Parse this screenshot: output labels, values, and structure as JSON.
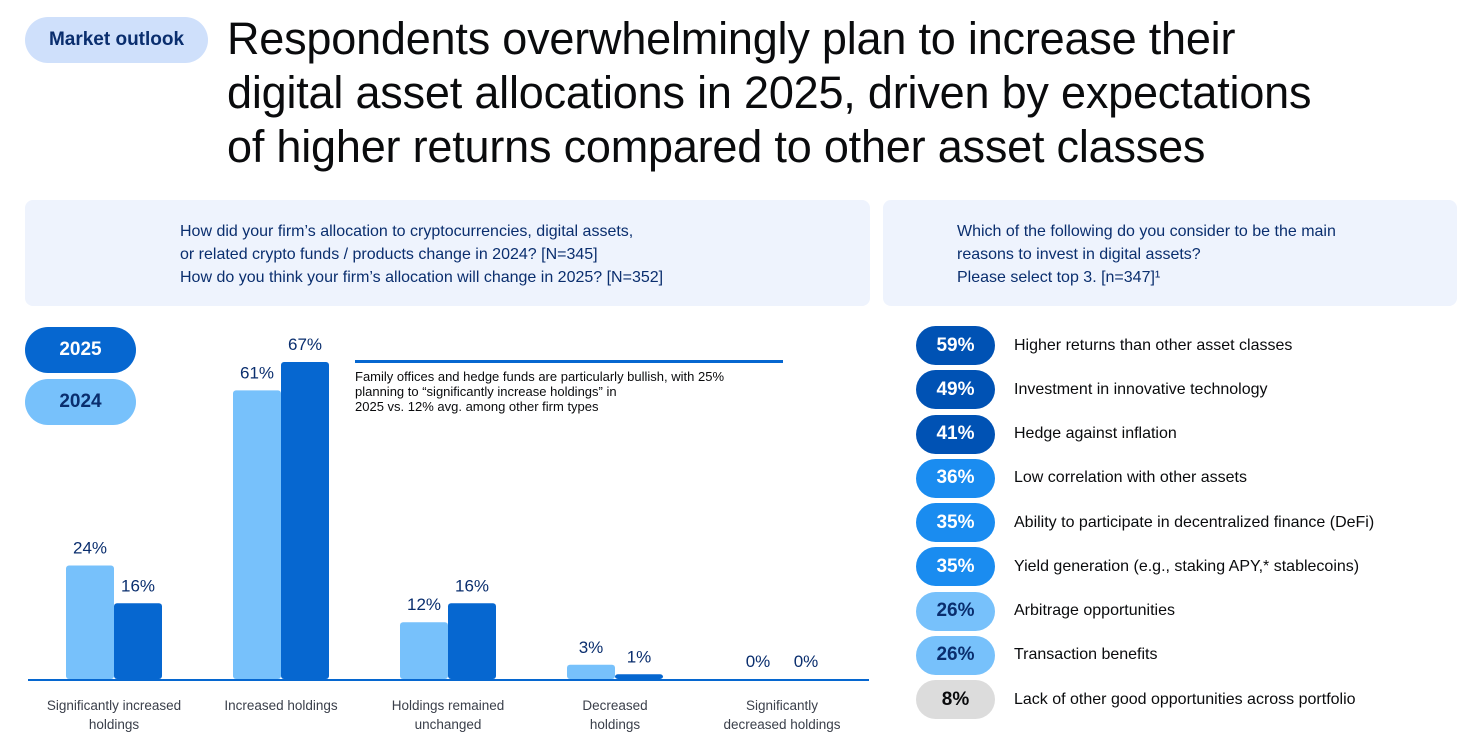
{
  "header": {
    "tag": "Market outlook",
    "headline_lines": [
      "Respondents overwhelmingly plan to increase their",
      "digital asset allocations in 2025, driven by expectations",
      "of higher returns compared to other asset classes"
    ]
  },
  "left_panel": {
    "question_lines": [
      "How did your firm’s allocation to cryptocurrencies, digital assets,",
      "or related crypto funds / products change in 2024? [N=345]",
      "How do you think your firm’s allocation will change in 2025? [N=352]"
    ]
  },
  "right_panel": {
    "question_lines": [
      "Which of the following do you consider to be the main",
      "reasons to invest in digital assets?",
      "Please select top 3. [n=347]¹"
    ]
  },
  "legend": {
    "series_2025": "2025",
    "series_2024": "2024"
  },
  "annotation": {
    "lines": [
      "Family offices and hedge funds are particularly bullish, with 25%",
      "planning to “significantly increase holdings” in",
      "2025 vs. 12% avg. among other firm types"
    ]
  },
  "colors": {
    "series_2025": "#0667d0",
    "series_2024": "#77c1fb",
    "axis": "#0667d0",
    "value_label": "#0a2e6e",
    "category_label": "#3a3f4a"
  },
  "chart_data": [
    {
      "type": "bar",
      "categories": [
        [
          "Significantly increased",
          "holdings"
        ],
        [
          "Increased holdings"
        ],
        [
          "Holdings remained",
          "unchanged"
        ],
        [
          "Decreased",
          "holdings"
        ],
        [
          "Significantly",
          "decreased holdings"
        ]
      ],
      "series": [
        {
          "name": "2024",
          "values": [
            24,
            61,
            12,
            3,
            0
          ],
          "labels": [
            "24%",
            "61%",
            "12%",
            "3%",
            "0%"
          ]
        },
        {
          "name": "2025",
          "values": [
            16,
            67,
            16,
            1,
            0
          ],
          "labels": [
            "16%",
            "67%",
            "16%",
            "1%",
            "0%"
          ]
        }
      ],
      "ylim": [
        0,
        67
      ],
      "legend": "left"
    },
    {
      "type": "bar",
      "orientation": "horizontal",
      "categories": [
        "Higher returns than other asset classes",
        "Investment in innovative technology",
        "Hedge against inflation",
        "Low correlation with other assets",
        "Ability to participate in decentralized finance (DeFi)",
        "Yield generation (e.g., staking APY,* stablecoins)",
        "Arbitrage opportunities",
        "Transaction benefits",
        "Lack of other good opportunities across portfolio"
      ],
      "values": [
        59,
        49,
        41,
        36,
        35,
        35,
        26,
        26,
        8
      ],
      "labels": [
        "59%",
        "49%",
        "41%",
        "36%",
        "35%",
        "35%",
        "26%",
        "26%",
        "8%"
      ],
      "pill_colors": [
        "#0052b4",
        "#0052b4",
        "#0052b4",
        "#1a8cf0",
        "#1a8cf0",
        "#1a8cf0",
        "#77c1fb",
        "#77c1fb",
        "#dcdcdc"
      ],
      "pill_text_colors": [
        "#ffffff",
        "#ffffff",
        "#ffffff",
        "#ffffff",
        "#ffffff",
        "#ffffff",
        "#0a2e6e",
        "#0a2e6e",
        "#0a0b0d"
      ]
    }
  ]
}
